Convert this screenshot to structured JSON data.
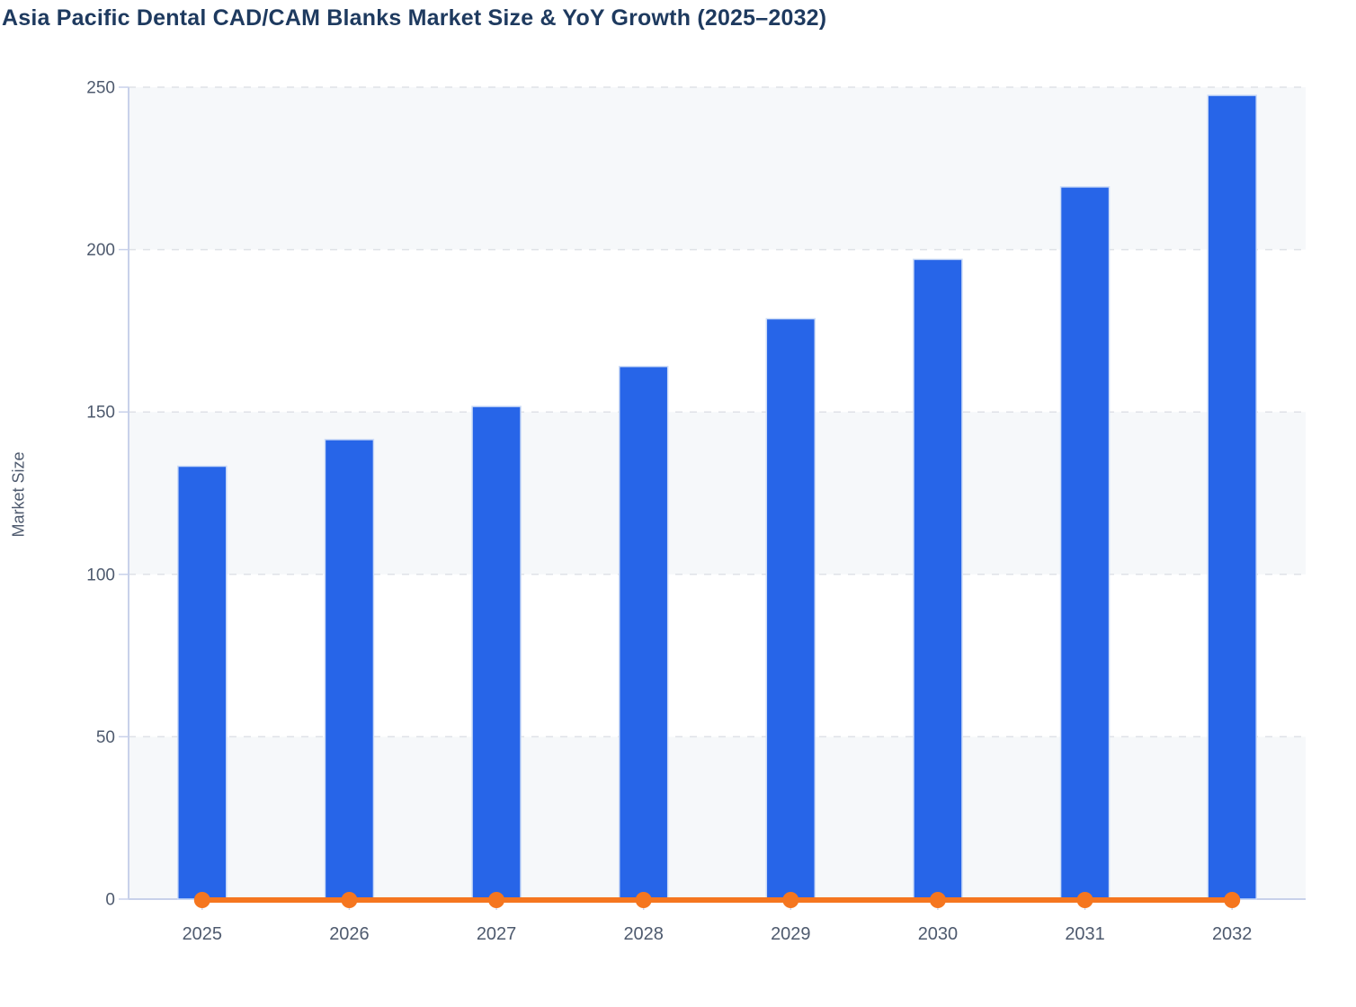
{
  "title": {
    "text": "Asia Pacific Dental CAD/CAM Blanks Market Size & YoY Growth (2025–2032)",
    "color": "#1e3a5f"
  },
  "chart_data": {
    "type": "bar",
    "title": "Asia Pacific Dental CAD/CAM Blanks Market Size & YoY Growth (2025–2032)",
    "categories": [
      "2025",
      "2026",
      "2027",
      "2028",
      "2029",
      "2030",
      "2031",
      "2032"
    ],
    "series": [
      {
        "name": "Market Size",
        "type": "bar",
        "values": [
          133.3,
          141.5,
          151.7,
          164.0,
          178.7,
          197.0,
          219.3,
          247.5
        ],
        "color": "#2765e8"
      },
      {
        "name": "YoY Growth",
        "type": "line",
        "values": [
          0,
          0,
          0,
          0,
          0,
          0,
          0,
          0
        ],
        "color": "#f5761f",
        "note": "line with round markers renders flat at y≈0 on the Market Size axis"
      }
    ],
    "xlabel": "",
    "ylabel": "Market Size",
    "ylim": [
      0,
      250
    ],
    "yticks": [
      0,
      50,
      100,
      150,
      200,
      250
    ],
    "grid": "horizontal dashed",
    "legend": "none",
    "plot_background": "alternating horizontal bands"
  },
  "colors": {
    "bar_fill": "#2765e8",
    "bar_stroke": "#cddcf7",
    "line": "#f5761f",
    "gridline": "#dfe2e7",
    "axis_line": "#c8d1ea",
    "band_gray": "#f6f8fa",
    "band_white": "#ffffff",
    "tick_label": "#4e5a6e",
    "title_text": "#1e3a5f",
    "page_background": "#ffffff"
  }
}
